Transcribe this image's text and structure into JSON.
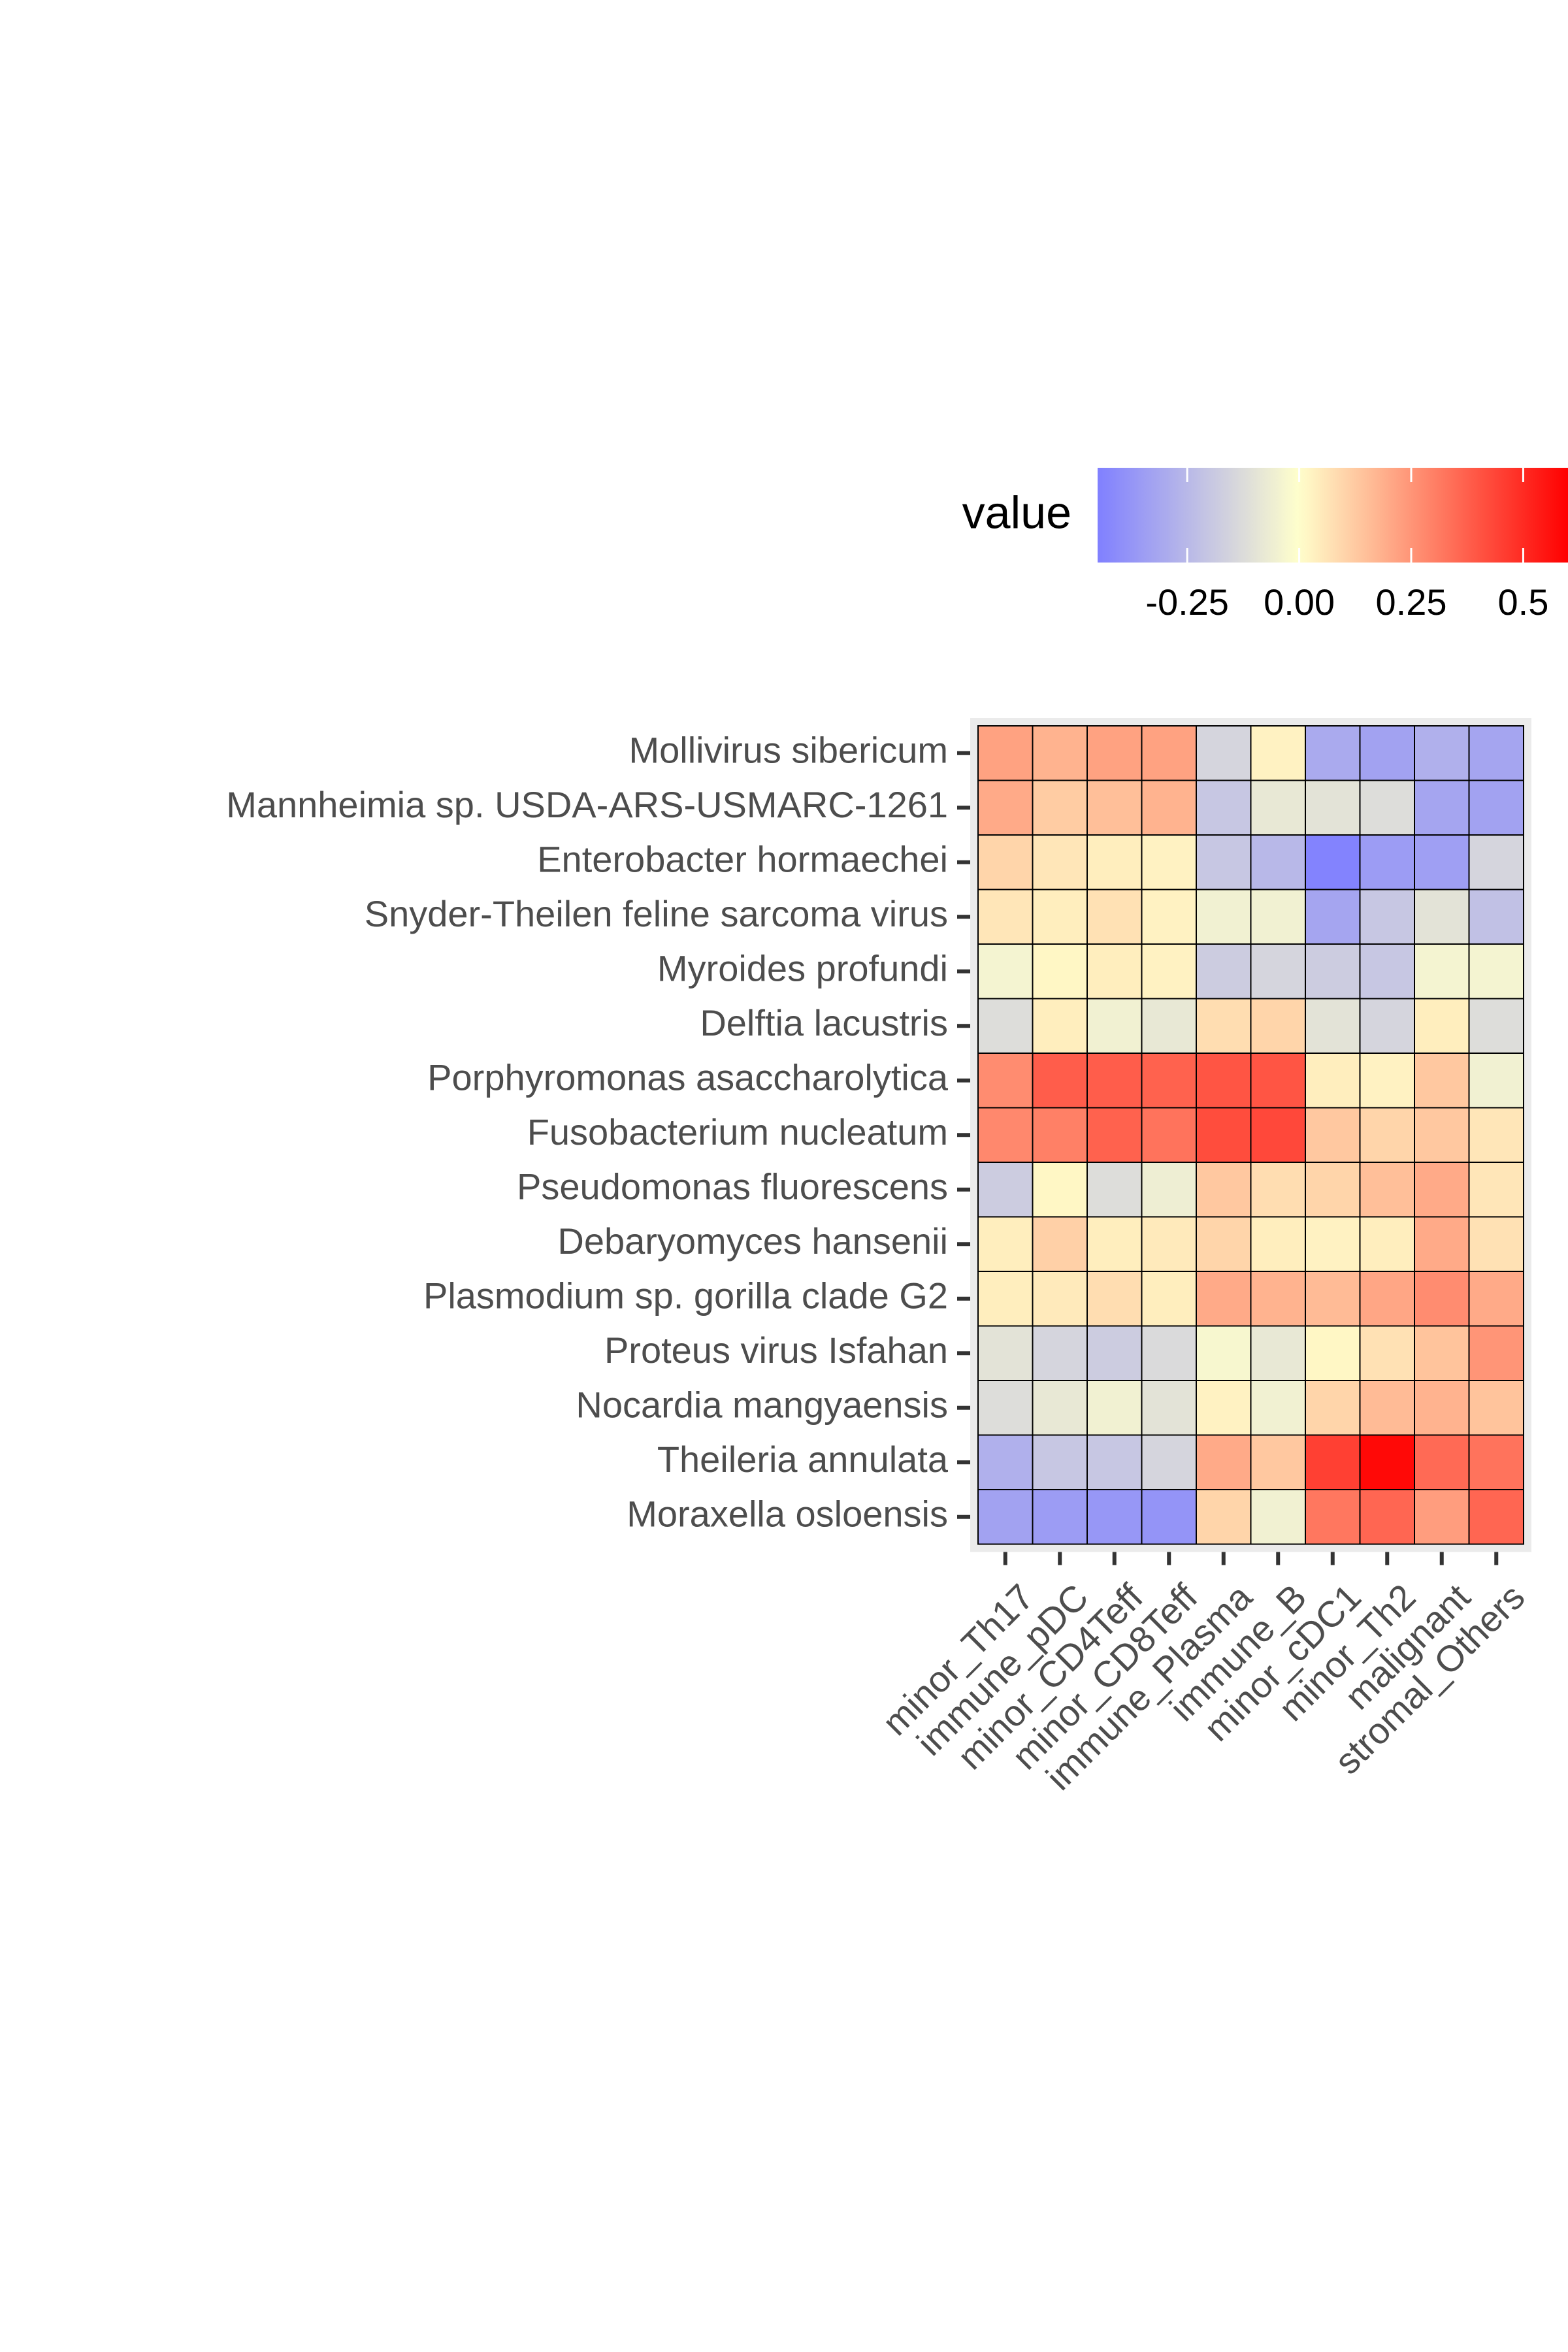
{
  "chart_data": {
    "type": "heatmap",
    "title": "",
    "xlabel": "",
    "ylabel": "",
    "rows": [
      "Mollivirus sibericum",
      "Mannheimia sp. USDA-ARS-USMARC-1261",
      "Enterobacter hormaechei",
      "Snyder-Theilen feline sarcoma virus",
      "Myroides profundi",
      "Delftia lacustris",
      "Porphyromonas asaccharolytica",
      "Fusobacterium nucleatum",
      "Pseudomonas fluorescens",
      "Debaryomyces hansenii",
      "Plasmodium sp. gorilla clade G2",
      "Proteus virus Isfahan",
      "Nocardia mangyaensis",
      "Theileria annulata",
      "Moraxella osloensis"
    ],
    "columns": [
      "minor_Th17",
      "immune_pDC",
      "minor_CD4Teff",
      "minor_CD8Teff",
      "immune_Plasma",
      "immune_B",
      "minor_cDC1",
      "minor_Th2",
      "malignant",
      "stromal_Others"
    ],
    "values": [
      [
        0.22,
        0.18,
        0.22,
        0.22,
        -0.15,
        0.03,
        -0.3,
        -0.33,
        -0.28,
        -0.32
      ],
      [
        0.2,
        0.12,
        0.15,
        0.18,
        -0.2,
        -0.08,
        -0.1,
        -0.12,
        -0.32,
        -0.33
      ],
      [
        0.1,
        0.06,
        0.04,
        0.03,
        -0.2,
        -0.25,
        -0.44,
        -0.35,
        -0.34,
        -0.15
      ],
      [
        0.06,
        0.04,
        0.07,
        0.03,
        -0.05,
        -0.05,
        -0.32,
        -0.2,
        -0.1,
        -0.22
      ],
      [
        -0.04,
        0.02,
        0.04,
        0.03,
        -0.18,
        -0.15,
        -0.18,
        -0.2,
        -0.04,
        -0.04
      ],
      [
        -0.12,
        0.04,
        -0.05,
        -0.08,
        0.08,
        0.1,
        -0.1,
        -0.15,
        0.04,
        -0.12
      ],
      [
        0.27,
        0.38,
        0.38,
        0.37,
        0.4,
        0.4,
        0.04,
        0.03,
        0.13,
        -0.05
      ],
      [
        0.28,
        0.3,
        0.37,
        0.33,
        0.42,
        0.43,
        0.13,
        0.1,
        0.13,
        0.06
      ],
      [
        -0.18,
        0.02,
        -0.12,
        -0.06,
        0.13,
        0.08,
        0.1,
        0.15,
        0.2,
        0.06
      ],
      [
        0.04,
        0.11,
        0.04,
        0.05,
        0.1,
        0.04,
        0.03,
        0.04,
        0.2,
        0.07
      ],
      [
        0.04,
        0.05,
        0.08,
        0.04,
        0.2,
        0.18,
        0.16,
        0.21,
        0.27,
        0.2
      ],
      [
        -0.1,
        -0.15,
        -0.18,
        -0.13,
        -0.03,
        -0.08,
        0.02,
        0.07,
        0.14,
        0.25
      ],
      [
        -0.12,
        -0.08,
        -0.05,
        -0.1,
        0.03,
        -0.05,
        0.1,
        0.16,
        0.18,
        0.14
      ],
      [
        -0.28,
        -0.2,
        -0.2,
        -0.15,
        0.2,
        0.13,
        0.45,
        0.58,
        0.35,
        0.33
      ],
      [
        -0.33,
        -0.35,
        -0.37,
        -0.38,
        0.1,
        -0.05,
        0.32,
        0.36,
        0.23,
        0.36
      ]
    ],
    "color_scale": {
      "min": -0.45,
      "mid": 0.0,
      "max": 0.6,
      "low_color": "#8080ff",
      "mid_color": "#ffffcc",
      "high_color": "#ff0000"
    },
    "legend": {
      "title": "value",
      "position": "top",
      "ticks": [
        -0.25,
        0.0,
        0.25,
        0.5
      ],
      "tick_labels": [
        "-0.25",
        "0.00",
        "0.25",
        "0.5"
      ]
    },
    "panel_background": "#ebebeb",
    "cell_border": "#000000"
  }
}
